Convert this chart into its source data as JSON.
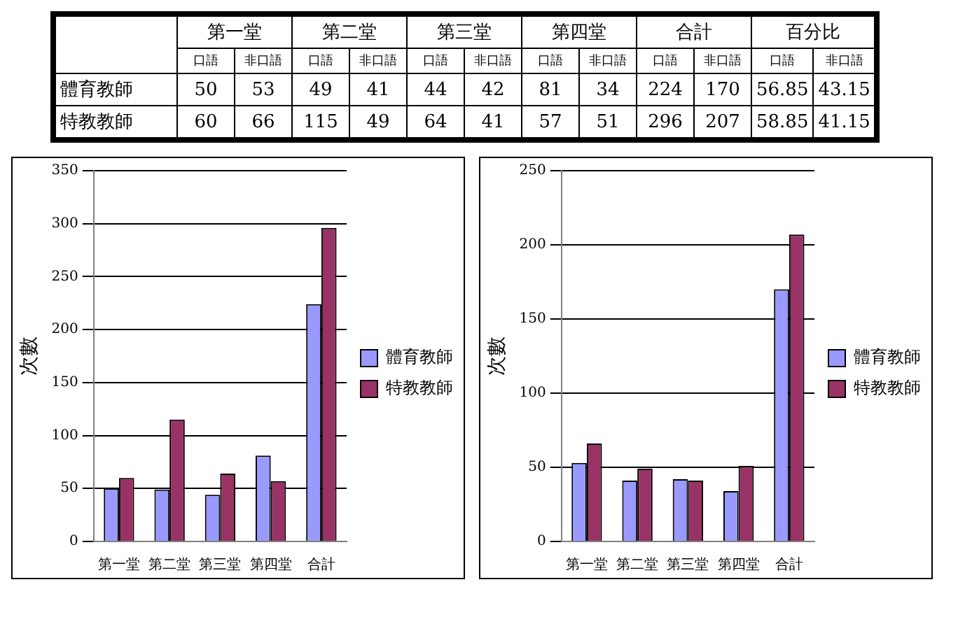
{
  "chart_data": [
    {
      "type": "other",
      "data_labels": true,
      "annotations": [
        "第一堂",
        "第二堂",
        "第三堂",
        "第四堂",
        "合計",
        "百分比"
      ],
      "categories": [
        "口語",
        "非口語",
        "口語",
        "非口語",
        "口語",
        "非口語",
        "口語",
        "非口語",
        "口語",
        "非口語",
        "口語",
        "非口語"
      ],
      "series": [
        {
          "name": "體育教師",
          "values": [
            50,
            53,
            49,
            41,
            44,
            42,
            81,
            34,
            224,
            170,
            56.85,
            43.15
          ]
        },
        {
          "name": "特教教師",
          "values": [
            60,
            66,
            115,
            49,
            64,
            41,
            57,
            51,
            296,
            207,
            58.85,
            41.15
          ]
        }
      ]
    },
    {
      "type": "bar",
      "ylabel": "次數",
      "categories": [
        "第一堂",
        "第二堂",
        "第三堂",
        "第四堂",
        "合計"
      ],
      "series": [
        {
          "name": "體育教師",
          "color": "#9999ff",
          "values": [
            50,
            49,
            44,
            81,
            224
          ]
        },
        {
          "name": "特教教師",
          "color": "#993366",
          "values": [
            60,
            115,
            64,
            57,
            296
          ]
        }
      ],
      "ylim": [
        0,
        350
      ],
      "yticks": [
        0,
        50,
        100,
        150,
        200,
        250,
        300,
        350
      ],
      "grid": "y",
      "legend": "right"
    },
    {
      "type": "bar",
      "ylabel": "次數",
      "categories": [
        "第一堂",
        "第二堂",
        "第三堂",
        "第四堂",
        "合計"
      ],
      "series": [
        {
          "name": "體育教師",
          "color": "#9999ff",
          "values": [
            53,
            41,
            42,
            34,
            170
          ]
        },
        {
          "name": "特教教師",
          "color": "#993366",
          "values": [
            66,
            49,
            41,
            51,
            207
          ]
        }
      ],
      "ylim": [
        0,
        250
      ],
      "yticks": [
        0,
        50,
        100,
        150,
        200,
        250
      ],
      "grid": "y",
      "legend": "right"
    }
  ]
}
